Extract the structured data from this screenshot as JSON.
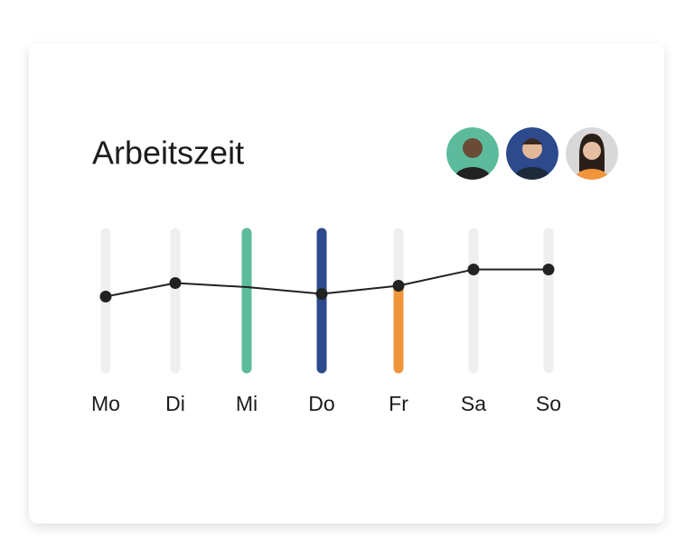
{
  "chart_data": {
    "type": "line",
    "title": "Arbeitszeit",
    "categories": [
      "Mo",
      "Di",
      "Mi",
      "Do",
      "Fr",
      "Sa",
      "So"
    ],
    "values": [
      5.3,
      6.3,
      6.0,
      5.5,
      6.1,
      7.3,
      7.3
    ],
    "markers": [
      true,
      true,
      false,
      true,
      true,
      true,
      true
    ],
    "color": "#222222",
    "bar_values": [
      null,
      null,
      10,
      10,
      6.1,
      null,
      null
    ],
    "bar_colors": [
      null,
      null,
      "#5dbb9d",
      "#2c4a8c",
      "#f0953a",
      null,
      null
    ],
    "track_color": "#f0eff0",
    "ylim": [
      0,
      10
    ]
  }
}
